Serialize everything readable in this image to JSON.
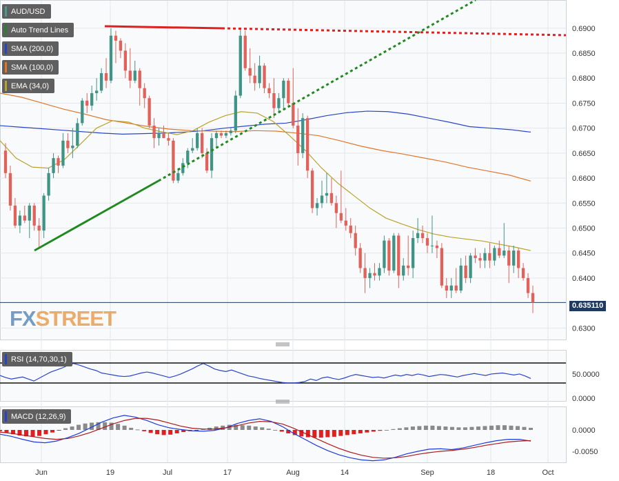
{
  "chart_data": {
    "type": "candlestick",
    "symbol": "AUD/USD",
    "last_price": "0.635110",
    "x_ticks": [
      "Jun",
      "19",
      "Jul",
      "17",
      "Aug",
      "14",
      "Sep",
      "18",
      "Oct"
    ],
    "price_axis": {
      "ticks": [
        "0.6900",
        "0.6850",
        "0.6800",
        "0.6750",
        "0.6700",
        "0.6650",
        "0.6600",
        "0.6550",
        "0.6500",
        "0.6450",
        "0.6400",
        "0.6300"
      ],
      "range": [
        0.6277,
        0.6955
      ]
    },
    "indicators": [
      {
        "label": "Auto Trend Lines",
        "color": "#2e7d32"
      },
      {
        "label": "SMA (200,0)",
        "color": "#2744c9"
      },
      {
        "label": "SMA (100,0)",
        "color": "#e0762b"
      },
      {
        "label": "EMA (34,0)",
        "color": "#b8a32a"
      }
    ],
    "candles": [
      [
        0.6655,
        0.667,
        0.66,
        0.661
      ],
      [
        0.661,
        0.6625,
        0.6535,
        0.6545
      ],
      [
        0.6545,
        0.656,
        0.65,
        0.6505
      ],
      [
        0.6505,
        0.6535,
        0.649,
        0.6525
      ],
      [
        0.6525,
        0.6545,
        0.651,
        0.6515
      ],
      [
        0.6515,
        0.655,
        0.648,
        0.6545
      ],
      [
        0.6545,
        0.655,
        0.6495,
        0.6505
      ],
      [
        0.6505,
        0.652,
        0.646,
        0.6495
      ],
      [
        0.6495,
        0.657,
        0.648,
        0.6565
      ],
      [
        0.6565,
        0.662,
        0.6555,
        0.661
      ],
      [
        0.661,
        0.665,
        0.66,
        0.664
      ],
      [
        0.664,
        0.6645,
        0.661,
        0.6625
      ],
      [
        0.6625,
        0.669,
        0.662,
        0.6675
      ],
      [
        0.6675,
        0.669,
        0.665,
        0.666
      ],
      [
        0.666,
        0.67,
        0.664,
        0.6665
      ],
      [
        0.6665,
        0.672,
        0.666,
        0.671
      ],
      [
        0.671,
        0.676,
        0.6705,
        0.6755
      ],
      [
        0.6755,
        0.677,
        0.673,
        0.6745
      ],
      [
        0.6745,
        0.6785,
        0.6735,
        0.677
      ],
      [
        0.677,
        0.68,
        0.6755,
        0.6775
      ],
      [
        0.6775,
        0.682,
        0.677,
        0.681
      ],
      [
        0.681,
        0.684,
        0.678,
        0.6795
      ],
      [
        0.6795,
        0.69,
        0.679,
        0.6885
      ],
      [
        0.6885,
        0.6895,
        0.683,
        0.6875
      ],
      [
        0.6875,
        0.688,
        0.684,
        0.6855
      ],
      [
        0.6855,
        0.687,
        0.68,
        0.6815
      ],
      [
        0.6815,
        0.686,
        0.678,
        0.6795
      ],
      [
        0.6795,
        0.6835,
        0.679,
        0.6815
      ],
      [
        0.6815,
        0.682,
        0.6745,
        0.678
      ],
      [
        0.678,
        0.679,
        0.674,
        0.676
      ],
      [
        0.676,
        0.6765,
        0.67,
        0.6705
      ],
      [
        0.6705,
        0.672,
        0.666,
        0.668
      ],
      [
        0.668,
        0.67,
        0.6665,
        0.669
      ],
      [
        0.669,
        0.6705,
        0.668,
        0.668
      ],
      [
        0.668,
        0.669,
        0.6665,
        0.6675
      ],
      [
        0.6675,
        0.668,
        0.659,
        0.6595
      ],
      [
        0.6595,
        0.662,
        0.659,
        0.661
      ],
      [
        0.661,
        0.664,
        0.6605,
        0.663
      ],
      [
        0.663,
        0.666,
        0.662,
        0.6655
      ],
      [
        0.6655,
        0.668,
        0.665,
        0.666
      ],
      [
        0.666,
        0.67,
        0.6655,
        0.669
      ],
      [
        0.669,
        0.67,
        0.664,
        0.665
      ],
      [
        0.665,
        0.666,
        0.661,
        0.6615
      ],
      [
        0.6615,
        0.669,
        0.66,
        0.668
      ],
      [
        0.668,
        0.6695,
        0.666,
        0.669
      ],
      [
        0.669,
        0.6695,
        0.668,
        0.6685
      ],
      [
        0.6685,
        0.6695,
        0.668,
        0.669
      ],
      [
        0.669,
        0.67,
        0.6685,
        0.6695
      ],
      [
        0.6695,
        0.6775,
        0.669,
        0.6765
      ],
      [
        0.6765,
        0.69,
        0.676,
        0.6885
      ],
      [
        0.6885,
        0.6895,
        0.6815,
        0.682
      ],
      [
        0.682,
        0.686,
        0.679,
        0.6805
      ],
      [
        0.6805,
        0.683,
        0.6775,
        0.679
      ],
      [
        0.679,
        0.6845,
        0.678,
        0.6825
      ],
      [
        0.6825,
        0.683,
        0.677,
        0.678
      ],
      [
        0.678,
        0.679,
        0.676,
        0.677
      ],
      [
        0.677,
        0.68,
        0.672,
        0.674
      ],
      [
        0.674,
        0.677,
        0.673,
        0.676
      ],
      [
        0.676,
        0.68,
        0.674,
        0.6795
      ],
      [
        0.6795,
        0.68,
        0.6745,
        0.675
      ],
      [
        0.675,
        0.682,
        0.67,
        0.6705
      ],
      [
        0.6705,
        0.674,
        0.6625,
        0.665
      ],
      [
        0.665,
        0.673,
        0.664,
        0.672
      ],
      [
        0.672,
        0.6725,
        0.66,
        0.6615
      ],
      [
        0.6615,
        0.662,
        0.653,
        0.654
      ],
      [
        0.654,
        0.656,
        0.6525,
        0.655
      ],
      [
        0.655,
        0.6595,
        0.654,
        0.6565
      ],
      [
        0.6565,
        0.661,
        0.655,
        0.657
      ],
      [
        0.657,
        0.66,
        0.6545,
        0.655
      ],
      [
        0.655,
        0.6565,
        0.65,
        0.653
      ],
      [
        0.653,
        0.6615,
        0.651,
        0.6515
      ],
      [
        0.6515,
        0.654,
        0.6495,
        0.6505
      ],
      [
        0.6505,
        0.652,
        0.648,
        0.649
      ],
      [
        0.649,
        0.6505,
        0.6445,
        0.646
      ],
      [
        0.646,
        0.647,
        0.641,
        0.642
      ],
      [
        0.642,
        0.645,
        0.637,
        0.64
      ],
      [
        0.64,
        0.642,
        0.638,
        0.641
      ],
      [
        0.641,
        0.643,
        0.6395,
        0.6405
      ],
      [
        0.6405,
        0.643,
        0.6395,
        0.642
      ],
      [
        0.642,
        0.6485,
        0.641,
        0.6475
      ],
      [
        0.6475,
        0.648,
        0.6405,
        0.6415
      ],
      [
        0.6415,
        0.649,
        0.641,
        0.6485
      ],
      [
        0.6485,
        0.649,
        0.638,
        0.6405
      ],
      [
        0.6405,
        0.644,
        0.6395,
        0.6425
      ],
      [
        0.6425,
        0.6485,
        0.6405,
        0.642
      ],
      [
        0.642,
        0.6495,
        0.64,
        0.648
      ],
      [
        0.648,
        0.652,
        0.647,
        0.649
      ],
      [
        0.649,
        0.6505,
        0.647,
        0.648
      ],
      [
        0.648,
        0.649,
        0.645,
        0.6465
      ],
      [
        0.6465,
        0.6525,
        0.645,
        0.6465
      ],
      [
        0.6465,
        0.6475,
        0.644,
        0.646
      ],
      [
        0.646,
        0.647,
        0.638,
        0.6385
      ],
      [
        0.6385,
        0.64,
        0.636,
        0.6375
      ],
      [
        0.6375,
        0.64,
        0.636,
        0.6385
      ],
      [
        0.6385,
        0.642,
        0.637,
        0.6375
      ],
      [
        0.6375,
        0.644,
        0.637,
        0.6425
      ],
      [
        0.6425,
        0.6445,
        0.639,
        0.64
      ],
      [
        0.64,
        0.645,
        0.639,
        0.6445
      ],
      [
        0.6445,
        0.646,
        0.643,
        0.644
      ],
      [
        0.644,
        0.645,
        0.642,
        0.6435
      ],
      [
        0.6435,
        0.646,
        0.642,
        0.645
      ],
      [
        0.645,
        0.647,
        0.642,
        0.6435
      ],
      [
        0.6435,
        0.6465,
        0.6425,
        0.646
      ],
      [
        0.646,
        0.6475,
        0.644,
        0.6445
      ],
      [
        0.6445,
        0.651,
        0.644,
        0.6455
      ],
      [
        0.6455,
        0.6465,
        0.639,
        0.6425
      ],
      [
        0.6425,
        0.6465,
        0.641,
        0.6455
      ],
      [
        0.6455,
        0.646,
        0.64,
        0.642
      ],
      [
        0.642,
        0.643,
        0.6395,
        0.64
      ],
      [
        0.64,
        0.641,
        0.636,
        0.637
      ],
      [
        0.637,
        0.6385,
        0.633,
        0.6351
      ]
    ],
    "sma200": [
      0.6705,
      0.6702,
      0.6699,
      0.6696,
      0.6693,
      0.669,
      0.6688,
      0.6689,
      0.669,
      0.6692,
      0.6695,
      0.67,
      0.6704,
      0.6708,
      0.671,
      0.6717,
      0.6725,
      0.6731,
      0.6734,
      0.6733,
      0.6728,
      0.672,
      0.6712,
      0.6703,
      0.67,
      0.6697,
      0.6692
    ],
    "sma100": [
      0.677,
      0.6762,
      0.675,
      0.6738,
      0.6728,
      0.6717,
      0.671,
      0.6703,
      0.6698,
      0.6695,
      0.6694,
      0.6693,
      0.6695,
      0.6694,
      0.669,
      0.6685,
      0.6675,
      0.6664,
      0.6655,
      0.6648,
      0.664,
      0.6632,
      0.6622,
      0.6614,
      0.6606,
      0.6594
    ],
    "ema34": [
      0.6675,
      0.664,
      0.6622,
      0.662,
      0.6637,
      0.6668,
      0.67,
      0.6715,
      0.6712,
      0.67,
      0.6693,
      0.6687,
      0.6695,
      0.6712,
      0.6725,
      0.6733,
      0.673,
      0.6713,
      0.6685,
      0.6655,
      0.662,
      0.659,
      0.6565,
      0.654,
      0.652,
      0.6508,
      0.6497,
      0.6488,
      0.6482,
      0.6478,
      0.6474,
      0.6468,
      0.6462,
      0.6455
    ],
    "rsi": {
      "label": "RSI (14,70,30,1)",
      "ticks": [
        "50.0000",
        "0.0000"
      ],
      "values": [
        45,
        41,
        38,
        40,
        42,
        38,
        34,
        40,
        46,
        52,
        56,
        60,
        65,
        69,
        66,
        62,
        58,
        55,
        50,
        48,
        46,
        44,
        43,
        44,
        47,
        50,
        52,
        50,
        47,
        44,
        41,
        44,
        48,
        53,
        58,
        64,
        69,
        64,
        58,
        55,
        53,
        56,
        52,
        48,
        44,
        42,
        39,
        37,
        35,
        33,
        31,
        30,
        30,
        31,
        33,
        38,
        35,
        40,
        42,
        39,
        37,
        40,
        44,
        47,
        45,
        43,
        41,
        42,
        40,
        43,
        46,
        44,
        47,
        45,
        48,
        46,
        43,
        45,
        47,
        46,
        44,
        42,
        45,
        47,
        49,
        47,
        45,
        48,
        49,
        50,
        48,
        46,
        48,
        44,
        39
      ]
    },
    "macd": {
      "label": "MACD (12,26,9)",
      "ticks": [
        "0.0000",
        "-0.0050"
      ],
      "histogram": [
        -0.0003,
        -0.0006,
        -0.001,
        -0.0013,
        -0.0015,
        -0.0016,
        -0.0014,
        -0.001,
        -0.0006,
        -0.0001,
        0.0004,
        0.0008,
        0.0012,
        0.0015,
        0.0017,
        0.0018,
        0.0018,
        0.0017,
        0.0014,
        0.001,
        0.0005,
        0.0001,
        -0.0003,
        -0.0007,
        -0.001,
        -0.0012,
        -0.0011,
        -0.0008,
        -0.0005,
        -0.0003,
        -0.0001,
        0.0002,
        0.0005,
        0.0008,
        0.001,
        0.0012,
        0.0012,
        0.0011,
        0.001,
        0.0008,
        0.0006,
        0.0003,
        0.0,
        -0.0004,
        -0.0008,
        -0.0012,
        -0.0015,
        -0.0017,
        -0.0018,
        -0.0018,
        -0.0017,
        -0.0016,
        -0.0014,
        -0.0012,
        -0.001,
        -0.0008,
        -0.0006,
        -0.0004,
        -0.0002,
        0.0,
        0.0002,
        0.0004,
        0.0006,
        0.0008,
        0.0009,
        0.001,
        0.001,
        0.0009,
        0.0008,
        0.0007,
        0.0006,
        0.0006,
        0.0007,
        0.0008,
        0.0009,
        0.001,
        0.0011,
        0.0011,
        0.001,
        0.0009,
        0.0007,
        0.0005
      ],
      "macd_line": [
        -0.001,
        -0.0015,
        -0.0022,
        -0.0028,
        -0.003,
        -0.0026,
        -0.0018,
        -0.0008,
        0.0005,
        0.0018,
        0.0028,
        0.0034,
        0.003,
        0.0022,
        0.0012,
        0.0005,
        0.0001,
        -0.0002,
        -0.0003,
        -0.0001,
        0.0005,
        0.0015,
        0.0022,
        0.0026,
        0.002,
        0.0008,
        -0.0008,
        -0.0022,
        -0.0036,
        -0.0048,
        -0.0058,
        -0.0065,
        -0.007,
        -0.0072,
        -0.007,
        -0.0064,
        -0.0056,
        -0.005,
        -0.0045,
        -0.0044,
        -0.0046,
        -0.0042,
        -0.0036,
        -0.003,
        -0.0025,
        -0.0022,
        -0.0022,
        -0.0026
      ],
      "signal_line": [
        -0.0005,
        -0.0008,
        -0.0012,
        -0.0016,
        -0.002,
        -0.0022,
        -0.002,
        -0.0014,
        -0.0006,
        0.0004,
        0.0014,
        0.0022,
        0.0027,
        0.0027,
        0.0023,
        0.0016,
        0.0009,
        0.0004,
        0.0002,
        0.0002,
        0.0005,
        0.001,
        0.0016,
        0.002,
        0.0019,
        0.0014,
        0.0004,
        -0.0008,
        -0.002,
        -0.0032,
        -0.0043,
        -0.0052,
        -0.0059,
        -0.0064,
        -0.0066,
        -0.0065,
        -0.0062,
        -0.0057,
        -0.0053,
        -0.005,
        -0.0048,
        -0.0045,
        -0.0041,
        -0.0036,
        -0.0032,
        -0.0028,
        -0.0026,
        -0.0025
      ]
    }
  }
}
